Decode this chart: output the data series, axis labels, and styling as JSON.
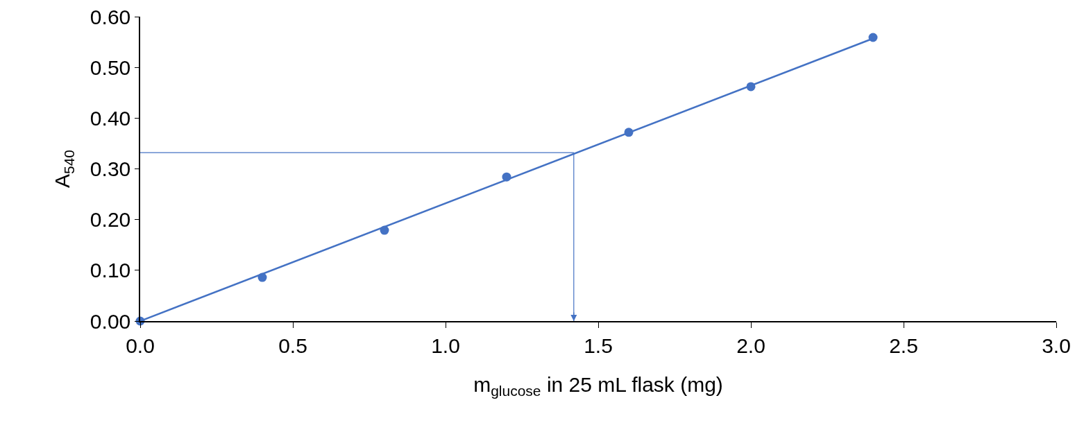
{
  "chart_data": {
    "type": "scatter",
    "xlabel": "m$_{glucose}$ in 25 mL flask (mg)",
    "ylabel": "A$_{540}$",
    "series": [
      {
        "color": "#4472c4",
        "marker": "circle",
        "x": [
          0,
          0.4,
          0.8,
          1.2,
          1.6,
          2.0,
          2.4
        ],
        "values": [
          0.0,
          0.086,
          0.179,
          0.284,
          0.372,
          0.462,
          0.559
        ]
      },
      {
        "type": "line",
        "color": "#4472c4",
        "marker": "none",
        "line_style": "solid",
        "x": [
          0,
          2.4
        ],
        "values": [
          0.0,
          0.557
        ]
      }
    ],
    "ref_lines": [
      {
        "axis": "y",
        "value": 0.332,
        "color": "#4472c4",
        "line_style": "solid"
      },
      {
        "axis": "x",
        "value": 1.42,
        "color": "#4472c4",
        "line_style": "solid"
      }
    ],
    "xlim": [
      0,
      3.0
    ],
    "xticks": [
      {
        "value": 0,
        "label": "0.0"
      },
      {
        "value": 0.5,
        "label": "0.5"
      },
      {
        "value": 1,
        "label": "1.0"
      },
      {
        "value": 1.5,
        "label": "1.5"
      },
      {
        "value": 2,
        "label": "2.0"
      },
      {
        "value": 2.5,
        "label": "2.5"
      },
      {
        "value": 3,
        "label": "3.0"
      }
    ],
    "ylim": [
      0,
      0.6
    ],
    "yticks": [
      {
        "value": 0,
        "label": "0.00"
      },
      {
        "value": 0.1,
        "label": "0.10"
      },
      {
        "value": 0.2,
        "label": "0.20"
      },
      {
        "value": 0.3,
        "label": "0.30"
      },
      {
        "value": 0.4,
        "label": "0.40"
      },
      {
        "value": 0.5,
        "label": "0.50"
      },
      {
        "value": 0.6,
        "label": "0.60"
      }
    ]
  }
}
